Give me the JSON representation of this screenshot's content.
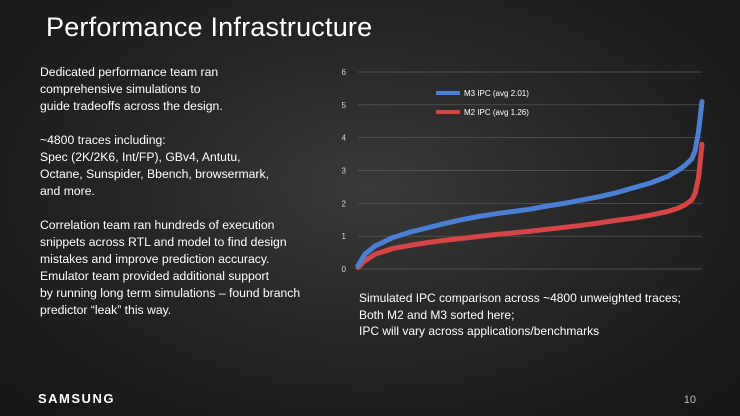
{
  "slide": {
    "title": "Performance Infrastructure",
    "paragraphs": [
      "Dedicated performance team ran\ncomprehensive simulations to\nguide tradeoffs across the design.",
      "~4800 traces including:\nSpec (2K/2K6, Int/FP), GBv4, Antutu,\nOctane, Sunspider, Bbench, browsermark,\nand more.",
      "Correlation team ran hundreds of  execution\nsnippets across RTL and model to find design\nmistakes and improve prediction accuracy.\nEmulator team provided additional support\nby running long term simulations – found branch\npredictor “leak” this way."
    ],
    "caption_lines": [
      "Simulated IPC comparison across ~4800 unweighted traces;",
      "Both M2 and M3 sorted here;",
      "IPC will vary across applications/benchmarks"
    ],
    "brand": "SAMSUNG",
    "page_number": "10"
  },
  "chart_data": {
    "type": "line",
    "title": "",
    "xlabel": "",
    "ylabel": "",
    "ylim": [
      0,
      6
    ],
    "yticks": [
      0,
      1,
      2,
      3,
      4,
      5,
      6
    ],
    "grid": true,
    "legend_position": "top",
    "series": [
      {
        "name": "M3 IPC (avg 2.01)",
        "color": "#4a7fd4",
        "x": [
          0,
          0.02,
          0.05,
          0.1,
          0.15,
          0.2,
          0.25,
          0.3,
          0.35,
          0.4,
          0.45,
          0.5,
          0.55,
          0.6,
          0.65,
          0.7,
          0.75,
          0.8,
          0.85,
          0.9,
          0.93,
          0.95,
          0.97,
          0.98,
          0.99,
          1.0
        ],
        "values": [
          0.1,
          0.45,
          0.7,
          0.95,
          1.12,
          1.25,
          1.38,
          1.5,
          1.6,
          1.68,
          1.75,
          1.82,
          1.92,
          2.0,
          2.1,
          2.2,
          2.32,
          2.47,
          2.62,
          2.82,
          3.0,
          3.15,
          3.35,
          3.6,
          4.2,
          5.1
        ]
      },
      {
        "name": "M2 IPC (avg 1.26)",
        "color": "#d64545",
        "x": [
          0,
          0.02,
          0.05,
          0.1,
          0.15,
          0.2,
          0.25,
          0.3,
          0.35,
          0.4,
          0.45,
          0.5,
          0.55,
          0.6,
          0.65,
          0.7,
          0.75,
          0.8,
          0.85,
          0.9,
          0.93,
          0.95,
          0.97,
          0.98,
          0.99,
          1.0
        ],
        "values": [
          0.05,
          0.25,
          0.45,
          0.62,
          0.72,
          0.8,
          0.87,
          0.93,
          0.99,
          1.05,
          1.1,
          1.15,
          1.21,
          1.27,
          1.33,
          1.4,
          1.48,
          1.55,
          1.64,
          1.75,
          1.85,
          1.95,
          2.1,
          2.3,
          2.8,
          3.8
        ]
      }
    ]
  }
}
